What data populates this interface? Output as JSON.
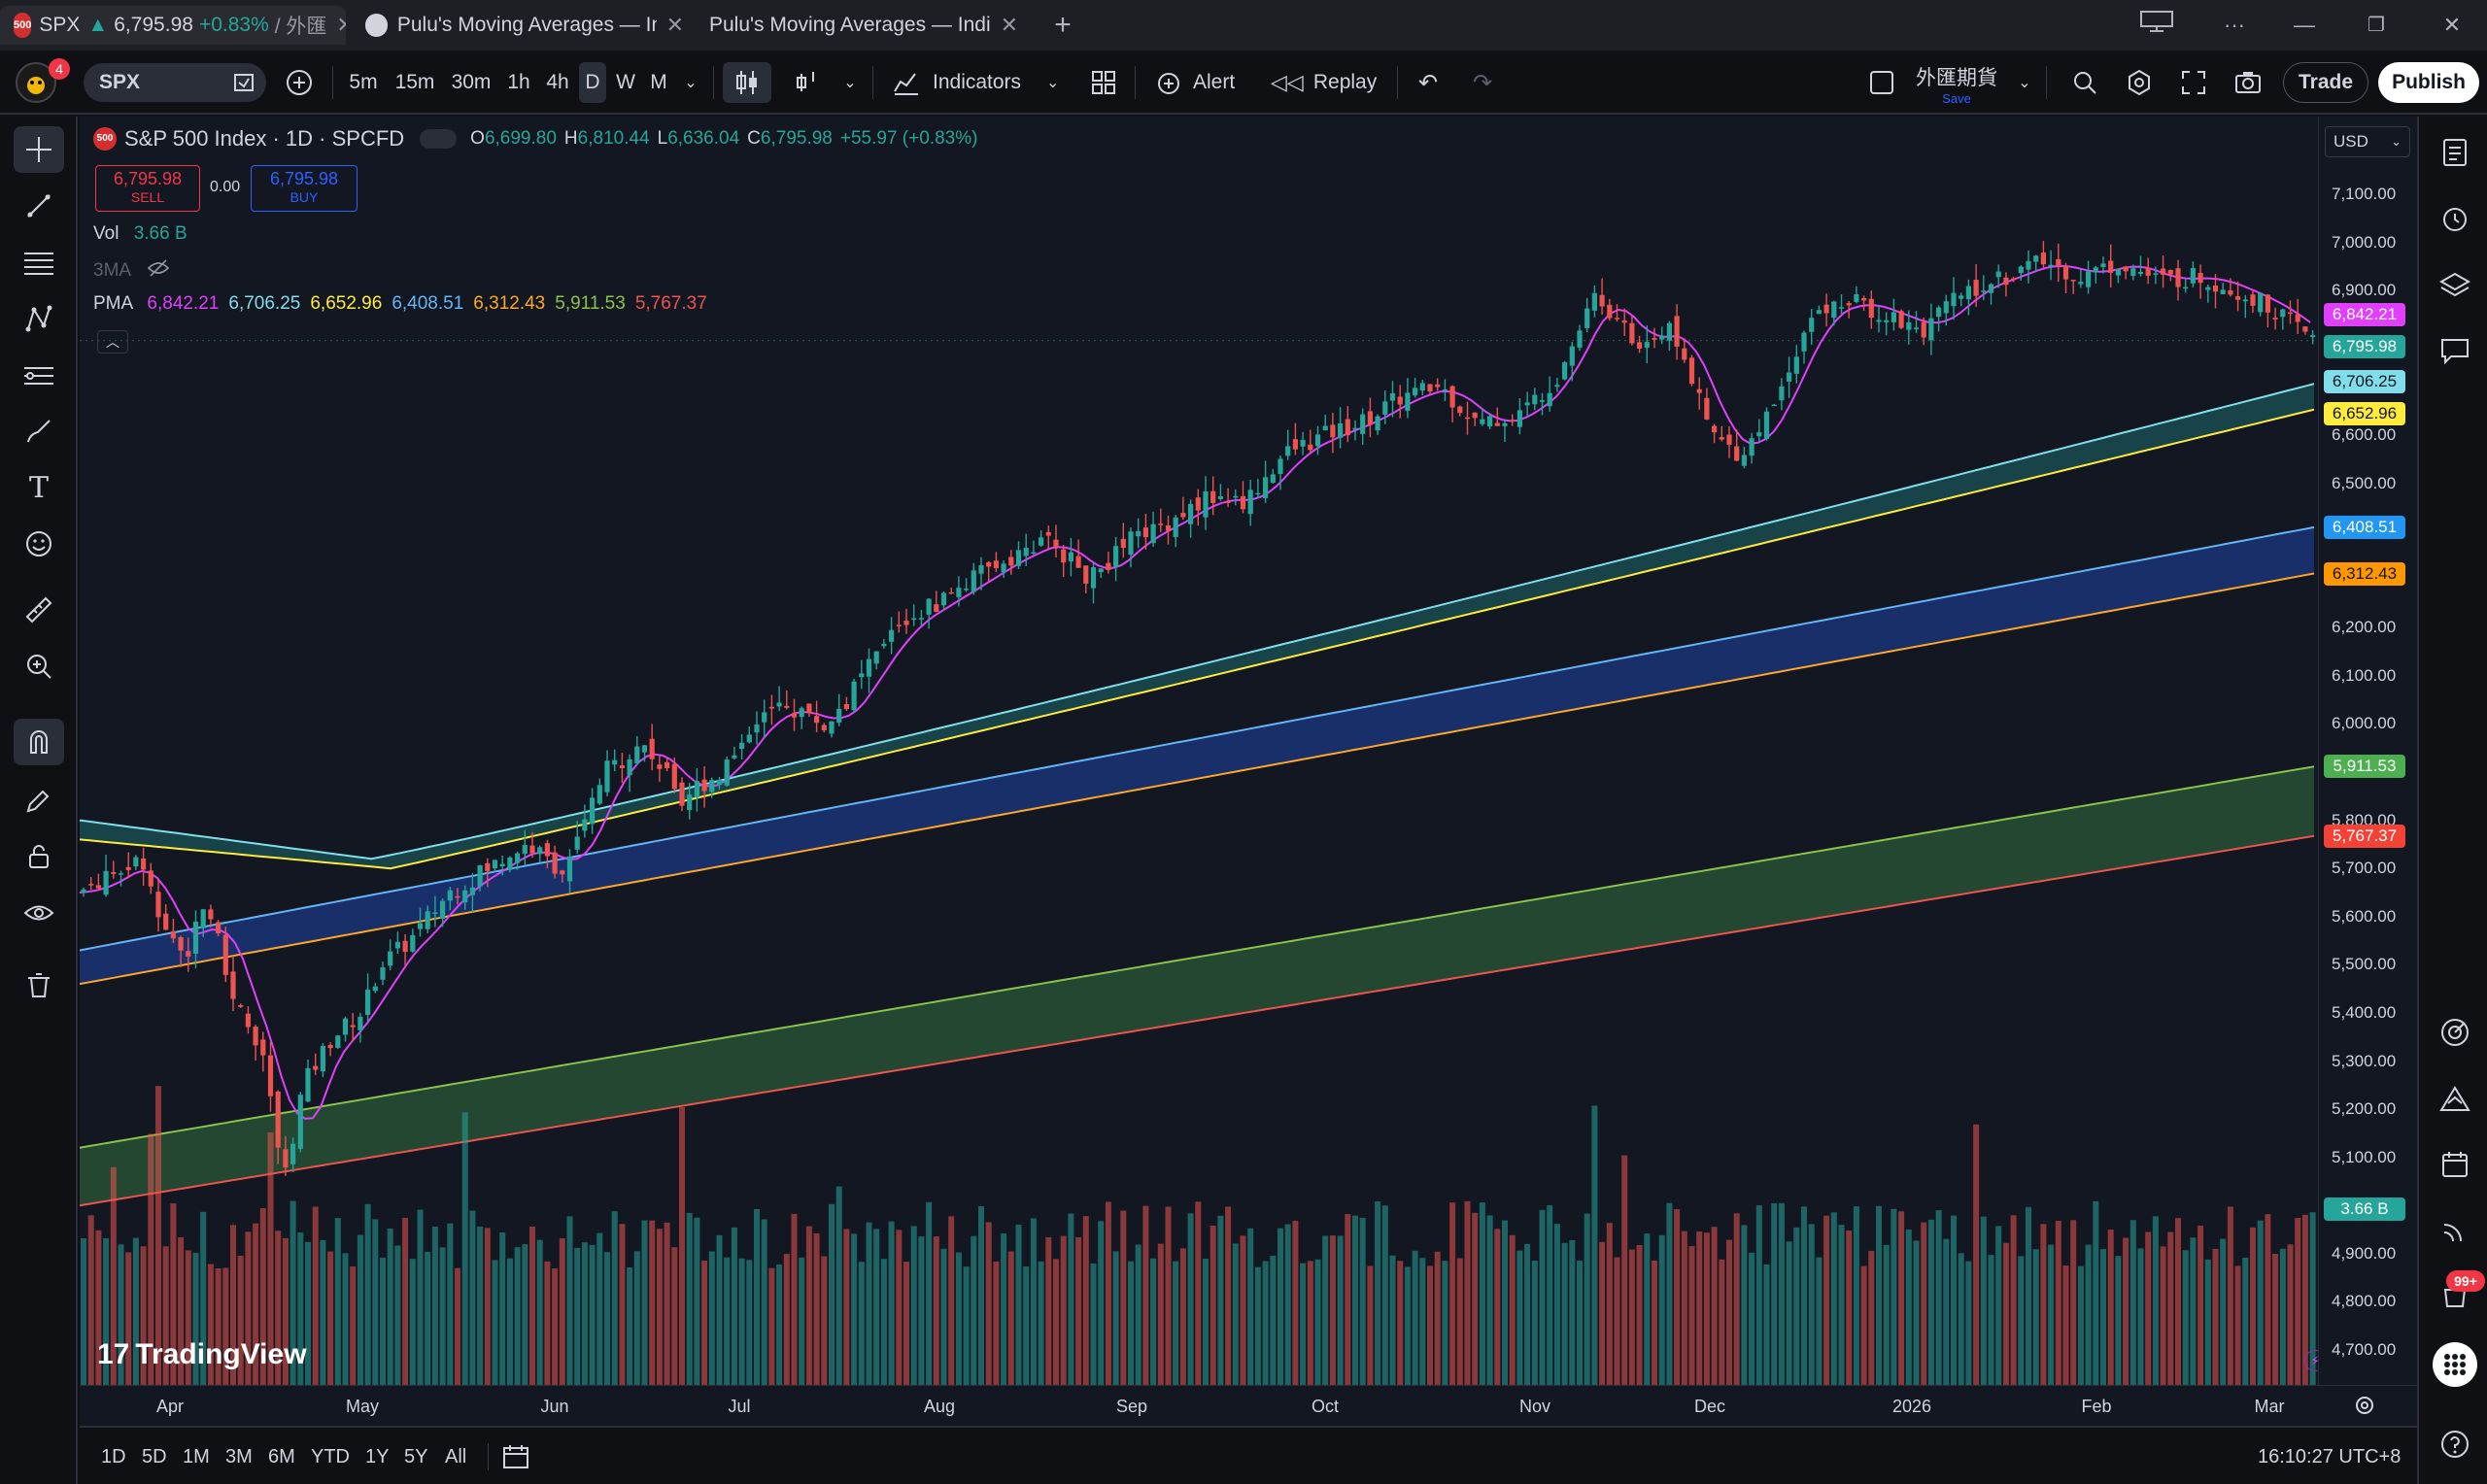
{
  "tabs": [
    {
      "icon": "500",
      "label": "SPX",
      "price": "6,795.98",
      "change": "+0.83%",
      "extra": "/ 外匯"
    },
    {
      "label": "Pulu's Moving Averages — Indi"
    },
    {
      "label": "Pulu's Moving Averages — Indicat"
    }
  ],
  "toolbar": {
    "notif_count": "4",
    "symbol": "SPX",
    "intervals": [
      "5m",
      "15m",
      "30m",
      "1h",
      "4h",
      "D",
      "W",
      "M"
    ],
    "selected_interval": "D",
    "indicators_label": "Indicators",
    "alert_label": "Alert",
    "replay_label": "Replay",
    "layout_name": "外匯期貨",
    "save_label": "Save",
    "trade_label": "Trade",
    "publish_label": "Publish"
  },
  "legend": {
    "icon": "500",
    "title": "S&P 500 Index · 1D · SPCFD",
    "o_label": "O",
    "o": "6,699.80",
    "h_label": "H",
    "h": "6,810.44",
    "l_label": "L",
    "l": "6,636.04",
    "c_label": "C",
    "c": "6,795.98",
    "chg": "+55.97 (+0.83%)",
    "sell_price": "6,795.98",
    "sell_label": "SELL",
    "spread": "0.00",
    "buy_price": "6,795.98",
    "buy_label": "BUY",
    "vol_label": "Vol",
    "vol": "3.66 B",
    "ma3_label": "3MA",
    "pma_label": "PMA",
    "pma_values": [
      {
        "v": "6,842.21",
        "color": "#e040fb"
      },
      {
        "v": "6,706.25",
        "color": "#80deea"
      },
      {
        "v": "6,652.96",
        "color": "#ffeb3b"
      },
      {
        "v": "6,408.51",
        "color": "#64b5f6"
      },
      {
        "v": "6,312.43",
        "color": "#ffa726"
      },
      {
        "v": "5,911.53",
        "color": "#8bc34a"
      },
      {
        "v": "5,767.37",
        "color": "#ef5350"
      }
    ]
  },
  "price_scale": {
    "currency": "USD",
    "ticks": [
      "7,100.00",
      "7,000.00",
      "6,900.00",
      "6,600.00",
      "6,500.00",
      "6,200.00",
      "6,100.00",
      "6,000.00",
      "5,800.00",
      "5,700.00",
      "5,600.00",
      "5,500.00",
      "5,400.00",
      "5,300.00",
      "5,200.00",
      "5,100.00",
      "4,900.00",
      "4,800.00",
      "4,700.00"
    ],
    "labels": [
      {
        "v": "6,842.21",
        "color": "#e040fb",
        "text_color": "#ffffff"
      },
      {
        "v": "6,795.98",
        "color": "#26a69a",
        "text_color": "#ffffff"
      },
      {
        "v": "6,706.25",
        "color": "#80deea",
        "text_color": "#131722"
      },
      {
        "v": "6,652.96",
        "color": "#ffeb3b",
        "text_color": "#131722"
      },
      {
        "v": "6,408.51",
        "color": "#2196f3",
        "text_color": "#ffffff"
      },
      {
        "v": "6,312.43",
        "color": "#ff9800",
        "text_color": "#131722"
      },
      {
        "v": "5,911.53",
        "color": "#4caf50",
        "text_color": "#ffffff"
      },
      {
        "v": "5,767.37",
        "color": "#f44336",
        "text_color": "#ffffff"
      },
      {
        "v": "3.66 B",
        "color": "#26a69a",
        "text_color": "#ffffff"
      }
    ]
  },
  "time_axis": {
    "months": [
      "Apr",
      "May",
      "Jun",
      "Jul",
      "Aug",
      "Sep",
      "Oct",
      "Nov",
      "Dec",
      "2026",
      "Feb",
      "Mar"
    ]
  },
  "bottom_bar": {
    "ranges": [
      "1D",
      "5D",
      "1M",
      "3M",
      "6M",
      "YTD",
      "1Y",
      "5Y",
      "All"
    ],
    "time": "16:10:27 UTC+8"
  },
  "watermark": "TradingView",
  "right_bar": {
    "notif_count": "99+"
  },
  "chart_data": {
    "type": "candlestick",
    "symbol": "S&P 500 Index",
    "interval": "1D",
    "y_range": [
      4650,
      7150
    ],
    "ma_bands": [
      {
        "from": "6,706.25",
        "to": "6,652.96",
        "fill": "#26a69a"
      },
      {
        "from": "6,408.51",
        "to": "6,312.43",
        "fill": "#2962ff"
      },
      {
        "from": "5,911.53",
        "to": "5,767.37",
        "fill": "#4caf50"
      }
    ],
    "last_close": 6795.98,
    "last_volume": "3.66 B"
  }
}
